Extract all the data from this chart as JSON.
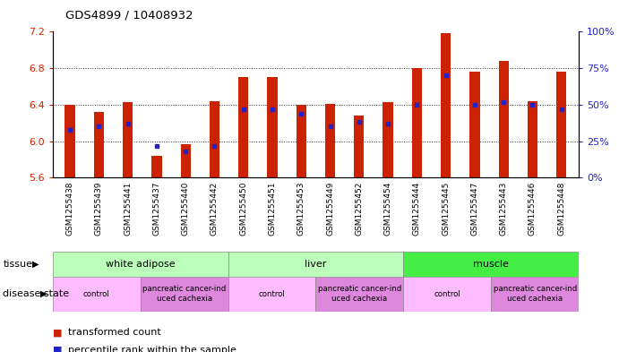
{
  "title": "GDS4899 / 10408932",
  "samples": [
    "GSM1255438",
    "GSM1255439",
    "GSM1255441",
    "GSM1255437",
    "GSM1255440",
    "GSM1255442",
    "GSM1255450",
    "GSM1255451",
    "GSM1255453",
    "GSM1255449",
    "GSM1255452",
    "GSM1255454",
    "GSM1255444",
    "GSM1255445",
    "GSM1255447",
    "GSM1255443",
    "GSM1255446",
    "GSM1255448"
  ],
  "bar_values": [
    6.4,
    6.32,
    6.43,
    5.84,
    5.97,
    6.44,
    6.7,
    6.7,
    6.4,
    6.41,
    6.28,
    6.43,
    6.8,
    7.18,
    6.76,
    6.88,
    6.44,
    6.76
  ],
  "percentile_values": [
    0.33,
    0.35,
    0.37,
    0.22,
    0.18,
    0.22,
    0.47,
    0.47,
    0.44,
    0.35,
    0.38,
    0.37,
    0.5,
    0.7,
    0.5,
    0.52,
    0.5,
    0.47
  ],
  "ymin": 5.6,
  "ymax": 7.2,
  "yticks": [
    5.6,
    6.0,
    6.4,
    6.8,
    7.2
  ],
  "bar_color": "#cc2200",
  "dot_color": "#2222cc",
  "tissue_labels": [
    {
      "text": "white adipose",
      "start": 0,
      "end": 5,
      "color": "#bbffbb"
    },
    {
      "text": "liver",
      "start": 6,
      "end": 11,
      "color": "#bbffbb"
    },
    {
      "text": "muscle",
      "start": 12,
      "end": 17,
      "color": "#44ee44"
    }
  ],
  "disease_labels": [
    {
      "text": "control",
      "start": 0,
      "end": 2,
      "color": "#ffbbff"
    },
    {
      "text": "pancreatic cancer-ind\nuced cachexia",
      "start": 3,
      "end": 5,
      "color": "#dd88dd"
    },
    {
      "text": "control",
      "start": 6,
      "end": 8,
      "color": "#ffbbff"
    },
    {
      "text": "pancreatic cancer-ind\nuced cachexia",
      "start": 9,
      "end": 11,
      "color": "#dd88dd"
    },
    {
      "text": "control",
      "start": 12,
      "end": 14,
      "color": "#ffbbff"
    },
    {
      "text": "pancreatic cancer-ind\nuced cachexia",
      "start": 15,
      "end": 17,
      "color": "#dd88dd"
    }
  ],
  "bg_color": "#ffffff",
  "xtick_bg": "#dddddd"
}
